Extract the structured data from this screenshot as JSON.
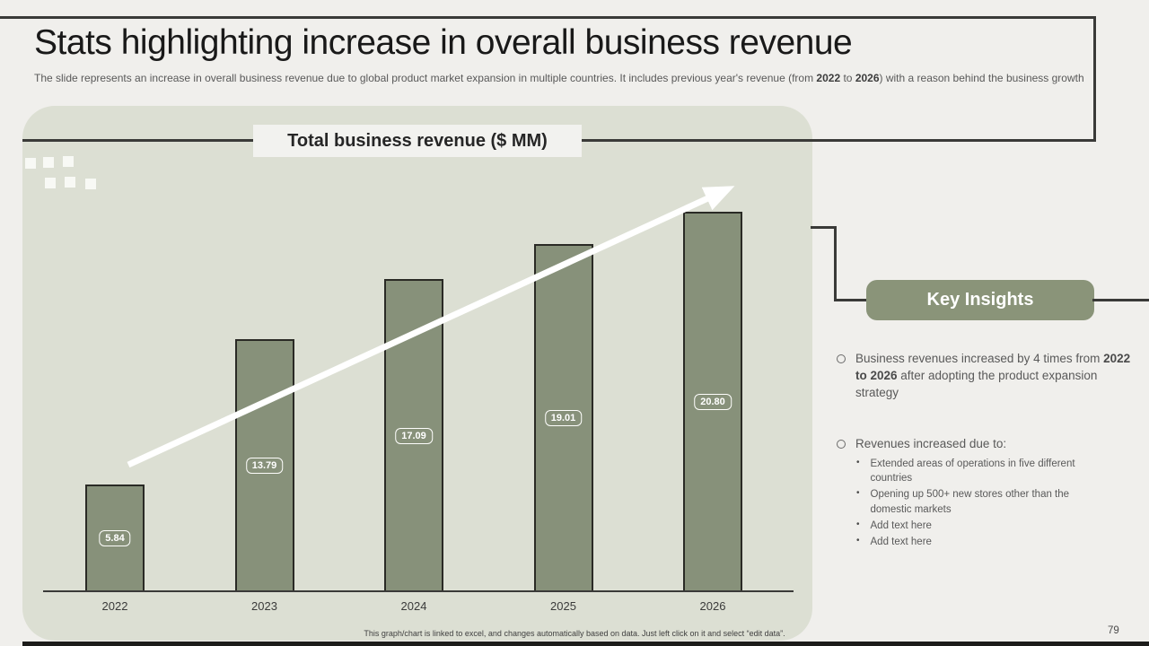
{
  "header": {
    "title": "Stats highlighting increase in overall business revenue",
    "subtitle": {
      "part1": "The slide represents an increase in overall business revenue due to global product market expansion in multiple countries. It includes previous year's revenue (from ",
      "bold1": "2022",
      "mid": " to ",
      "bold2": "2026",
      "part2": ") with a reason behind the business growth"
    }
  },
  "chart_data": {
    "type": "bar",
    "title": "Total business revenue ($ MM)",
    "categories": [
      "2022",
      "2023",
      "2024",
      "2025",
      "2026"
    ],
    "values": [
      5.84,
      13.79,
      17.09,
      19.01,
      20.8
    ],
    "value_labels": [
      "5.84",
      "13.79",
      "17.09",
      "19.01",
      "20.80"
    ],
    "xlabel": "",
    "ylabel": "",
    "ylim": [
      0,
      22
    ],
    "grid": false,
    "legend": "none",
    "bar_color": "#87917a",
    "annotation": "white upward trend arrow across bars"
  },
  "insights": {
    "heading": "Key Insights",
    "bullet1": {
      "pre": "Business revenues increased by 4 times from ",
      "bold": "2022 to 2026",
      "post": " after adopting the product expansion strategy"
    },
    "bullet2_intro": "Revenues increased due to:",
    "sub_bullets": [
      "Extended areas of operations in five different countries",
      "Opening up 500+ new stores other than the domestic markets",
      "Add text here",
      "Add text here"
    ]
  },
  "footer": {
    "note": "This graph/chart is linked to excel, and changes automatically based on data. Just left click on it and select “edit data”.",
    "page_number": "79"
  },
  "colors": {
    "slide_bg": "#f0efec",
    "panel_bg": "#dcdfd3",
    "bar_fill": "#87917a",
    "accent_green": "#8a9479",
    "line_dark": "#3a3a38",
    "text_gray": "#595959"
  }
}
